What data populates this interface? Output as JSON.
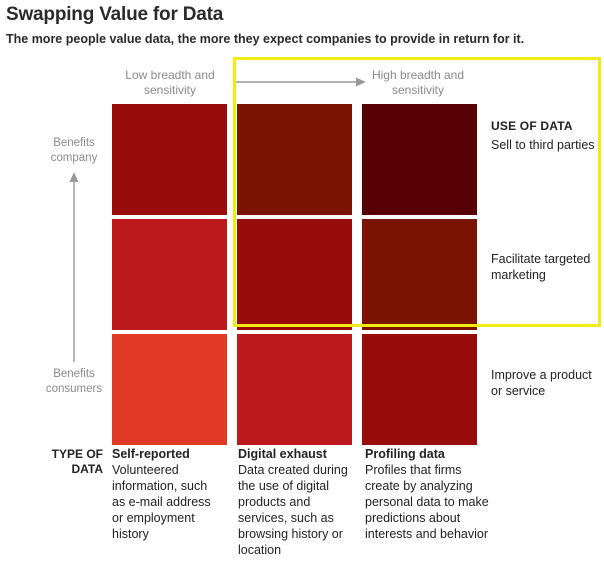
{
  "title": "Swapping Value for Data",
  "subtitle": "The more people value data, the more they expect companies to provide in return for it.",
  "columns": {
    "low": "Low breadth and sensitivity",
    "high": "High breadth and sensitivity"
  },
  "y_axis": {
    "top": "Benefits company",
    "bottom": "Benefits consumers"
  },
  "use_of_data": {
    "heading": "USE OF DATA",
    "rows": [
      "Sell to third parties",
      "Facilitate targeted marketing",
      "Improve a product or service"
    ]
  },
  "type_of_data": {
    "heading": "TYPE OF DATA",
    "types": [
      {
        "title": "Self-reported",
        "desc": "Volunteered information, such as e-mail address or employment history"
      },
      {
        "title": "Digital exhaust",
        "desc": "Data created during the use of digital products and services, such as browsing history or location"
      },
      {
        "title": "Profiling data",
        "desc": "Profiles that firms create by analyzing personal data to make predictions about interests and behavior"
      }
    ]
  },
  "grid_colors": [
    [
      "#990c0c",
      "#7a1300",
      "#560005"
    ],
    [
      "#bb191c",
      "#990c0c",
      "#7a1300"
    ],
    [
      "#e03a26",
      "#bb191c",
      "#990c0c"
    ]
  ],
  "highlight_color": "#f2ea14",
  "axis_color": "#9a9a9a"
}
